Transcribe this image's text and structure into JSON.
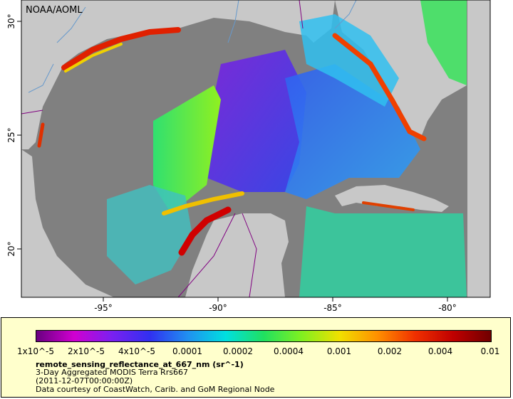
{
  "map": {
    "credit_label": "NOAA/AOML",
    "lon_ticks": [
      "-95°",
      "-90°",
      "-85°",
      "-80°"
    ],
    "lat_ticks": [
      "30°",
      "25°",
      "20°"
    ],
    "ocean_color": "#808080",
    "land_color": "#c8c8c8",
    "river_color": "#6699cc",
    "border_color": "#800080"
  },
  "legend": {
    "colorbar_labels": [
      "1x10^-5",
      "2x10^-5",
      "4x10^-5",
      "0.0001",
      "0.0002",
      "0.0004",
      "0.001",
      "0.002",
      "0.004",
      "0.01"
    ],
    "variable": "remote_sensing_reflectance_at_667_nm (sr^-1)",
    "subtitle": "3-Day Aggregated MODIS Terra Rrs667",
    "time": "(2011-12-07T00:00:00Z)",
    "credit": "Data courtesy of CoastWatch, Carib. and GoM Regional Node",
    "colors": [
      "#6a0080",
      "#d000d0",
      "#7a20f0",
      "#3030f0",
      "#2090f0",
      "#00e0e0",
      "#20e060",
      "#80f020",
      "#f0e000",
      "#ff9000",
      "#f03000",
      "#c00000",
      "#700000"
    ]
  }
}
